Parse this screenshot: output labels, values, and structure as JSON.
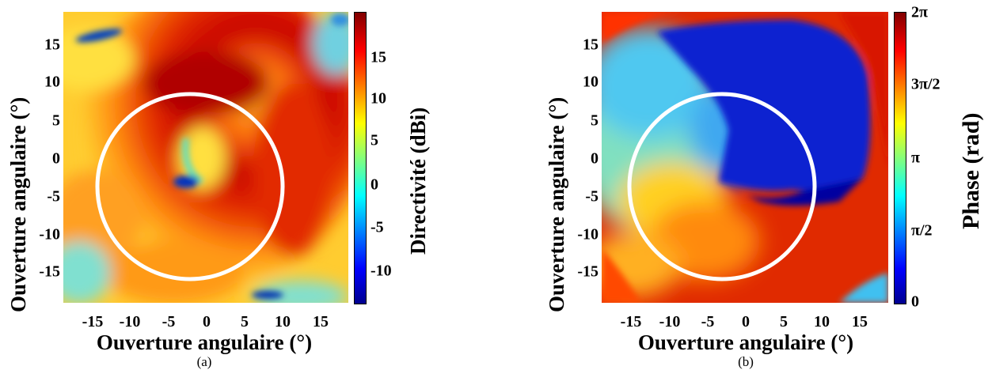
{
  "chart_data": [
    {
      "type": "heatmap",
      "caption": "(a)",
      "xlabel": "Ouverture angulaire (°)",
      "ylabel": "Ouverture angulaire (°)",
      "xlim": [
        -19,
        19
      ],
      "ylim": [
        -19,
        19
      ],
      "x_ticks": [
        "-15",
        "-10",
        "-5",
        "0",
        "5",
        "10",
        "15"
      ],
      "y_ticks": [
        "15",
        "10",
        "5",
        "0",
        "-5",
        "-10",
        "-15"
      ],
      "colorbar": {
        "label": "Directivité (dBi)",
        "range": [
          -14,
          19
        ],
        "colormap": "jet",
        "ticks": [
          "15",
          "10",
          "5",
          "0",
          "-5",
          "-10"
        ]
      },
      "overlay_circle": {
        "center": [
          -2,
          -2
        ],
        "radius": 12,
        "color": "#ffffff"
      }
    },
    {
      "type": "heatmap",
      "caption": "(b)",
      "xlabel": "Ouverture angulaire (°)",
      "ylabel": "Ouverture angulaire (°)",
      "xlim": [
        -19,
        19
      ],
      "ylim": [
        -19,
        19
      ],
      "x_ticks": [
        "-15",
        "-10",
        "-5",
        "0",
        "5",
        "10",
        "15"
      ],
      "y_ticks": [
        "15",
        "10",
        "5",
        "0",
        "-5",
        "-10",
        "-15"
      ],
      "colorbar": {
        "label": "Phase (rad)",
        "range": [
          0,
          6.2832
        ],
        "colormap": "jet",
        "ticks": [
          "2π",
          "3π/2",
          "π",
          "π/2",
          "0"
        ]
      },
      "overlay_circle": {
        "center": [
          -2,
          -2
        ],
        "radius": 12,
        "color": "#ffffff"
      }
    }
  ]
}
